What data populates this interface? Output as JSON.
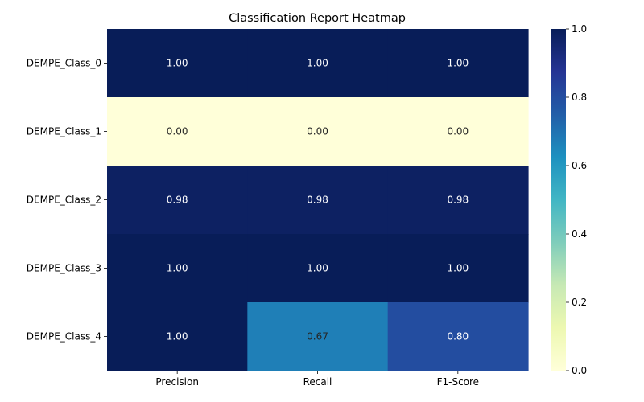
{
  "chart_data": {
    "type": "heatmap",
    "title": "Classification Report Heatmap",
    "rows": [
      "DEMPE_Class_0",
      "DEMPE_Class_1",
      "DEMPE_Class_2",
      "DEMPE_Class_3",
      "DEMPE_Class_4"
    ],
    "columns": [
      "Precision",
      "Recall",
      "F1-Score"
    ],
    "values": [
      [
        1.0,
        1.0,
        1.0
      ],
      [
        0.0,
        0.0,
        0.0
      ],
      [
        0.98,
        0.98,
        0.98
      ],
      [
        1.0,
        1.0,
        1.0
      ],
      [
        1.0,
        0.67,
        0.8
      ]
    ],
    "value_labels": [
      [
        "1.00",
        "1.00",
        "1.00"
      ],
      [
        "0.00",
        "0.00",
        "0.00"
      ],
      [
        "0.98",
        "0.98",
        "0.98"
      ],
      [
        "1.00",
        "1.00",
        "1.00"
      ],
      [
        "1.00",
        "0.67",
        "0.80"
      ]
    ],
    "vmin": 0,
    "vmax": 1,
    "colormap": "YlGnBu",
    "colorbar": {
      "ticks": [
        0.0,
        0.2,
        0.4,
        0.6,
        0.8,
        1.0
      ],
      "tick_labels": [
        "0.0",
        "0.2",
        "0.4",
        "0.6",
        "0.8",
        "1.0"
      ]
    },
    "xlabel": "",
    "ylabel": ""
  }
}
